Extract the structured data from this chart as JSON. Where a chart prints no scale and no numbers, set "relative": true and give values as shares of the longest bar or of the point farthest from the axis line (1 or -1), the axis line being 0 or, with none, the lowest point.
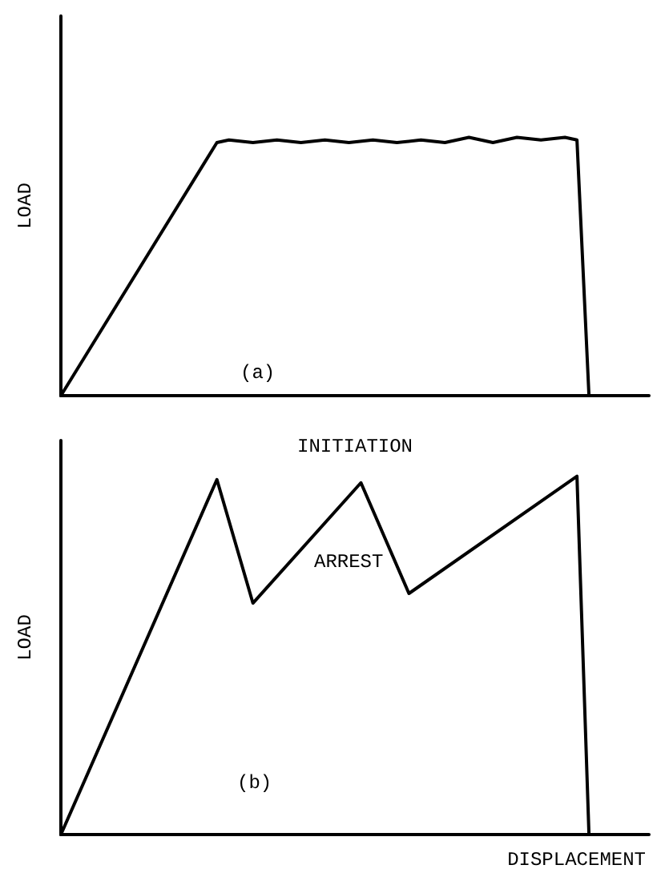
{
  "chart_data": [
    {
      "type": "line",
      "relative": true,
      "xlabel": "INITIATION",
      "ylabel": "LOAD",
      "annotations": [
        "(a)"
      ],
      "tick_labels": false,
      "grid": false,
      "line_style": "solid",
      "categories": [
        null,
        null,
        null,
        null,
        null,
        null,
        null,
        null,
        null,
        null,
        null,
        null,
        null,
        null,
        null,
        null,
        null,
        null,
        null,
        null,
        null,
        null,
        null,
        null,
        null,
        null,
        null,
        null,
        null,
        null,
        null,
        null,
        null,
        null,
        null,
        null,
        null,
        null,
        null,
        null,
        null,
        null,
        null,
        null,
        null,
        null,
        null,
        null,
        null,
        null
      ],
      "series": [
        {
          "color": "#000000",
          "values": [
            0,
            null,
            null,
            null,
            null,
            null,
            null,
            null,
            null,
            null,
            null,
            null,
            null,
            0.98,
            0.99,
            null,
            0.98,
            null,
            0.99,
            null,
            0.98,
            null,
            0.99,
            null,
            0.98,
            null,
            0.99,
            null,
            0.98,
            null,
            0.99,
            null,
            0.98,
            null,
            1,
            null,
            0.98,
            null,
            1,
            null,
            0.99,
            null,
            1,
            0.99,
            0,
            null,
            null,
            null,
            null,
            null
          ]
        }
      ]
    },
    {
      "type": "line",
      "relative": true,
      "xlabel": "DISPLACEMENT",
      "ylabel": "LOAD",
      "annotations": [
        "ARREST",
        "(b)"
      ],
      "tick_labels": false,
      "grid": false,
      "line_style": "solid",
      "categories": [
        null,
        null,
        null,
        null,
        null,
        null,
        null,
        null,
        null,
        null,
        null,
        null,
        null,
        null,
        null,
        null,
        null,
        null,
        null,
        null,
        null,
        null,
        null,
        null,
        null,
        null,
        null,
        null,
        null,
        null,
        null,
        null,
        null,
        null,
        null,
        null,
        null,
        null,
        null,
        null,
        null,
        null,
        null,
        null,
        null,
        null,
        null,
        null,
        null,
        null
      ],
      "series": [
        {
          "color": "#000000",
          "values": [
            0,
            null,
            null,
            null,
            null,
            null,
            null,
            null,
            null,
            null,
            null,
            null,
            null,
            0.991,
            null,
            null,
            0.646,
            null,
            null,
            null,
            null,
            null,
            null,
            null,
            null,
            0.982,
            null,
            null,
            null,
            0.673,
            null,
            null,
            null,
            null,
            null,
            null,
            null,
            null,
            null,
            null,
            null,
            null,
            null,
            1,
            0,
            null,
            null,
            null,
            null,
            null
          ]
        }
      ]
    }
  ]
}
